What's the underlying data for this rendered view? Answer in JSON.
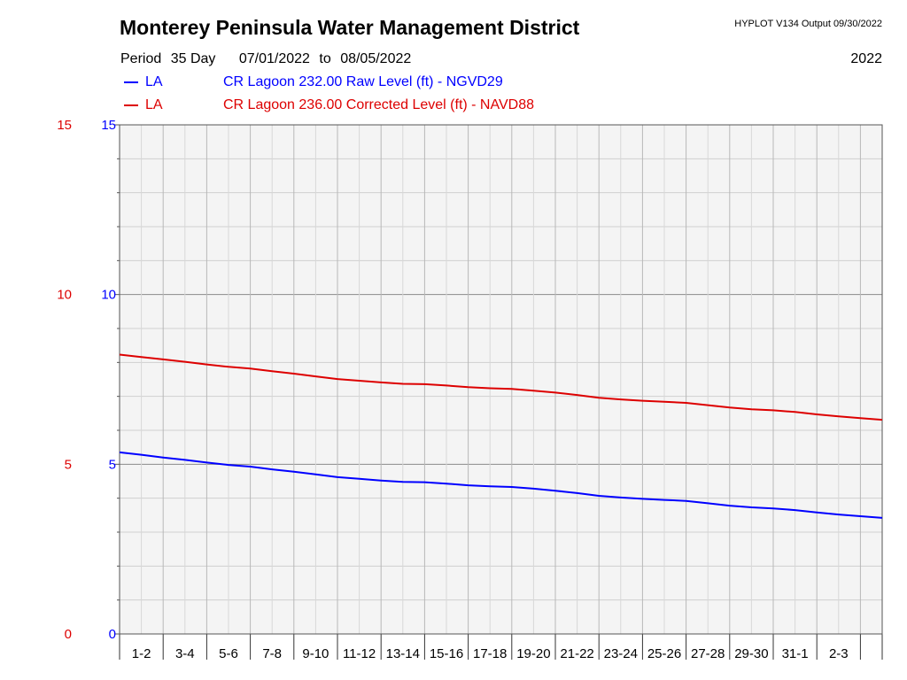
{
  "header": {
    "title": "Monterey Peninsula Water Management District",
    "program": "HYPLOT V134  Output 09/30/2022",
    "period_label": "Period",
    "period_length": "35 Day",
    "start_date": "07/01/2022",
    "to_label": "to",
    "end_date": "08/05/2022",
    "year": "2022"
  },
  "legend": [
    {
      "code": "LA",
      "description": "CR Lagoon  232.00 Raw Level (ft) - NGVD29",
      "color": "#0000ff"
    },
    {
      "code": "LA",
      "description": "CR Lagoon  236.00 Corrected Level (ft) - NAVD88",
      "color": "#dd0000"
    }
  ],
  "chart_data": {
    "type": "line",
    "x_unit": "day",
    "xlim": [
      0,
      35
    ],
    "ylim": [
      0,
      15
    ],
    "left_axis_ticks": [
      "15",
      "10",
      "5",
      "0"
    ],
    "right_axis_ticks": [
      "15",
      "10",
      "5",
      "0"
    ],
    "left_axis_color": "#dd0000",
    "right_axis_color": "#0000ff",
    "x_tick_labels": [
      "1-2",
      "3-4",
      "5-6",
      "7-8",
      "9-10",
      "11-12",
      "13-14",
      "15-16",
      "17-18",
      "19-20",
      "21-22",
      "23-24",
      "25-26",
      "27-28",
      "29-30",
      "31-1",
      "2-3"
    ],
    "grid": true,
    "plot_background": "#f4f4f4",
    "series": [
      {
        "name": "CR Lagoon  232.00 Raw Level (ft) - NGVD29",
        "color": "#0000ff",
        "x": [
          0,
          1,
          2,
          3,
          4,
          5,
          6,
          7,
          8,
          9,
          10,
          11,
          12,
          13,
          14,
          15,
          16,
          17,
          18,
          19,
          20,
          21,
          22,
          23,
          24,
          25,
          26,
          27,
          28,
          29,
          30,
          31,
          32,
          33,
          34,
          35
        ],
        "y": [
          5.35,
          5.28,
          5.2,
          5.13,
          5.05,
          4.98,
          4.93,
          4.85,
          4.78,
          4.7,
          4.62,
          4.57,
          4.52,
          4.48,
          4.47,
          4.43,
          4.38,
          4.35,
          4.33,
          4.28,
          4.22,
          4.15,
          4.07,
          4.02,
          3.98,
          3.95,
          3.92,
          3.85,
          3.78,
          3.73,
          3.7,
          3.65,
          3.58,
          3.52,
          3.47,
          3.42
        ]
      },
      {
        "name": "CR Lagoon  236.00 Corrected Level (ft) - NAVD88",
        "color": "#dd0000",
        "x": [
          0,
          1,
          2,
          3,
          4,
          5,
          6,
          7,
          8,
          9,
          10,
          11,
          12,
          13,
          14,
          15,
          16,
          17,
          18,
          19,
          20,
          21,
          22,
          23,
          24,
          25,
          26,
          27,
          28,
          29,
          30,
          31,
          32,
          33,
          34,
          35
        ],
        "y": [
          8.23,
          8.16,
          8.09,
          8.02,
          7.94,
          7.87,
          7.82,
          7.74,
          7.67,
          7.59,
          7.51,
          7.46,
          7.41,
          7.37,
          7.36,
          7.32,
          7.27,
          7.24,
          7.22,
          7.17,
          7.11,
          7.04,
          6.96,
          6.91,
          6.87,
          6.84,
          6.81,
          6.74,
          6.67,
          6.62,
          6.59,
          6.54,
          6.47,
          6.41,
          6.36,
          6.31
        ]
      }
    ]
  }
}
